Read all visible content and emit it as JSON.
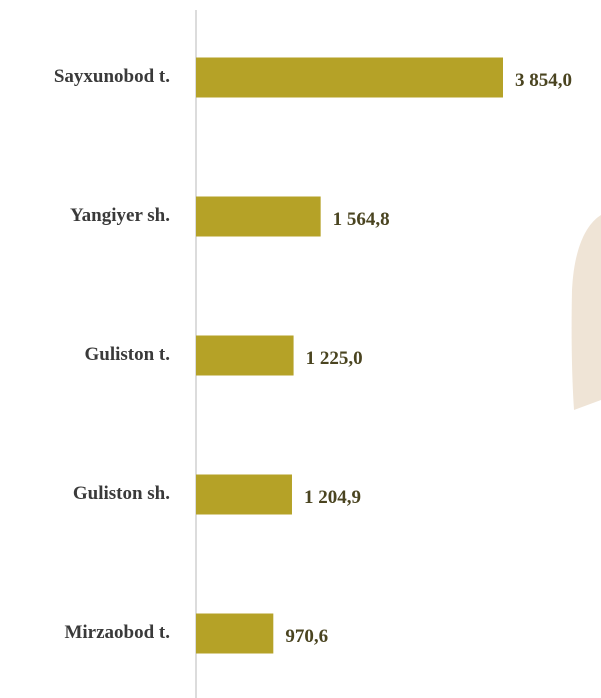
{
  "chart_data": {
    "type": "bar",
    "orientation": "horizontal",
    "categories": [
      "Sayxunobod t.",
      "Yangiyer sh.",
      "Guliston t.",
      "Guliston sh.",
      "Mirzaobod t."
    ],
    "values": [
      3854.0,
      1564.8,
      1225.0,
      1204.9,
      970.6
    ],
    "value_labels": [
      "3 854,0",
      "1 564,8",
      "1 225,0",
      "1 204,9",
      "970,6"
    ],
    "color": "#b5a227"
  }
}
